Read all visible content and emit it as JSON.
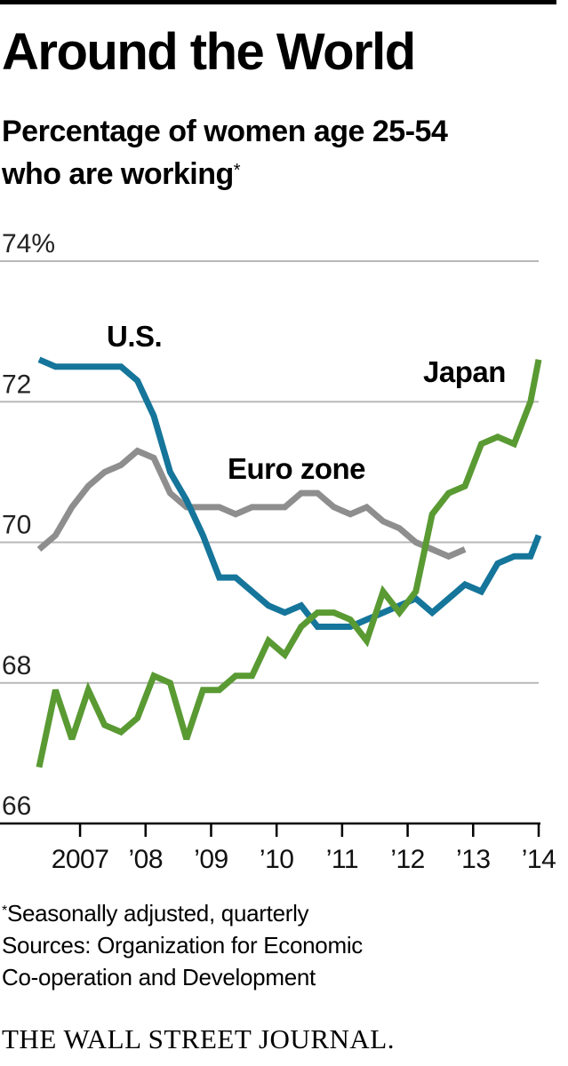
{
  "title": "Around the World",
  "subtitle_line1": "Percentage of women age 25-54",
  "subtitle_line2": "who are working",
  "subtitle_mark": "*",
  "footnote_mark": "*",
  "footnote": "Seasonally adjusted, quarterly",
  "source_line1": "Sources: Organization for Economic",
  "source_line2": "Co-operation and Development",
  "publisher": "THE WALL STREET JOURNAL.",
  "colors": {
    "us": "#15759a",
    "euro": "#8e8e8e",
    "japan": "#5a9a33",
    "grid": "#b8b8b8"
  },
  "chart_data": {
    "type": "line",
    "title": "Around the World",
    "ylabel": "Percentage of women age 25-54 who are working",
    "xlabel": "",
    "ylim": [
      66,
      74
    ],
    "xlim": [
      2006.375,
      2014
    ],
    "yticks": [
      74,
      72,
      70,
      68,
      66
    ],
    "ytick_labels": [
      "74%",
      "72",
      "70",
      "68",
      "66"
    ],
    "xticks": [
      2007,
      2008,
      2009,
      2010,
      2011,
      2012,
      2013,
      2014
    ],
    "xtick_labels": [
      "2007",
      "’08",
      "’09",
      "’10",
      "’11",
      "’12",
      "’13",
      "’14"
    ],
    "x": [
      2006.375,
      2006.625,
      2006.875,
      2007.125,
      2007.375,
      2007.625,
      2007.875,
      2008.125,
      2008.375,
      2008.625,
      2008.875,
      2009.125,
      2009.375,
      2009.625,
      2009.875,
      2010.125,
      2010.375,
      2010.625,
      2010.875,
      2011.125,
      2011.375,
      2011.625,
      2011.875,
      2012.125,
      2012.375,
      2012.625,
      2012.875,
      2013.125,
      2013.375,
      2013.625,
      2013.875,
      2014.0
    ],
    "series": [
      {
        "name": "U.S.",
        "key": "us",
        "label_text": "U.S.",
        "values": [
          72.6,
          72.5,
          72.5,
          72.5,
          72.5,
          72.5,
          72.3,
          71.8,
          71.0,
          70.6,
          70.1,
          69.5,
          69.5,
          69.3,
          69.1,
          69.0,
          69.1,
          68.8,
          68.8,
          68.8,
          68.9,
          69.0,
          69.1,
          69.2,
          69.0,
          69.2,
          69.4,
          69.3,
          69.7,
          69.8,
          69.8,
          70.1
        ]
      },
      {
        "name": "Euro zone",
        "key": "euro",
        "label_text": "Euro zone",
        "values": [
          69.9,
          70.1,
          70.5,
          70.8,
          71.0,
          71.1,
          71.3,
          71.2,
          70.7,
          70.5,
          70.5,
          70.5,
          70.4,
          70.5,
          70.5,
          70.5,
          70.7,
          70.7,
          70.5,
          70.4,
          70.5,
          70.3,
          70.2,
          70.0,
          69.9,
          69.8,
          69.9,
          null,
          null,
          null,
          null,
          null
        ]
      },
      {
        "name": "Japan",
        "key": "japan",
        "label_text": "Japan",
        "values": [
          66.8,
          67.9,
          67.2,
          67.9,
          67.4,
          67.3,
          67.5,
          68.1,
          68.0,
          67.2,
          67.9,
          67.9,
          68.1,
          68.1,
          68.6,
          68.4,
          68.8,
          69.0,
          69.0,
          68.9,
          68.6,
          69.3,
          69.0,
          69.3,
          70.4,
          70.7,
          70.8,
          71.4,
          71.5,
          71.4,
          72.0,
          72.6
        ]
      }
    ]
  }
}
